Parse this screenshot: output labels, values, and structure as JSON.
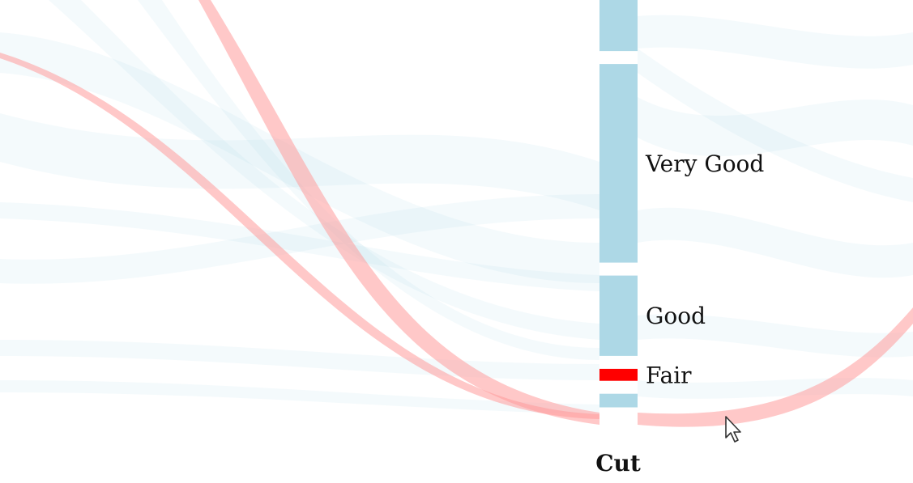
{
  "chart_data": {
    "type": "parallel-sets",
    "dimension": "Cut",
    "categories": [
      {
        "label": "",
        "share": 0.158
      },
      {
        "label": "Very Good",
        "share": 0.497
      },
      {
        "label": "Good",
        "share": 0.201
      },
      {
        "label": "Fair",
        "share": 0.03
      },
      {
        "label": "",
        "share": 0.034
      }
    ],
    "highlighted_category": "Fair",
    "colors": {
      "bar": "#add8e6",
      "highlight_bar": "#ff0000",
      "ribbon": "#add8e6",
      "highlight_ribbon": "#ff9a9a",
      "text": "#111111"
    }
  },
  "cursor": {
    "icon": "arrow-cursor-icon"
  }
}
